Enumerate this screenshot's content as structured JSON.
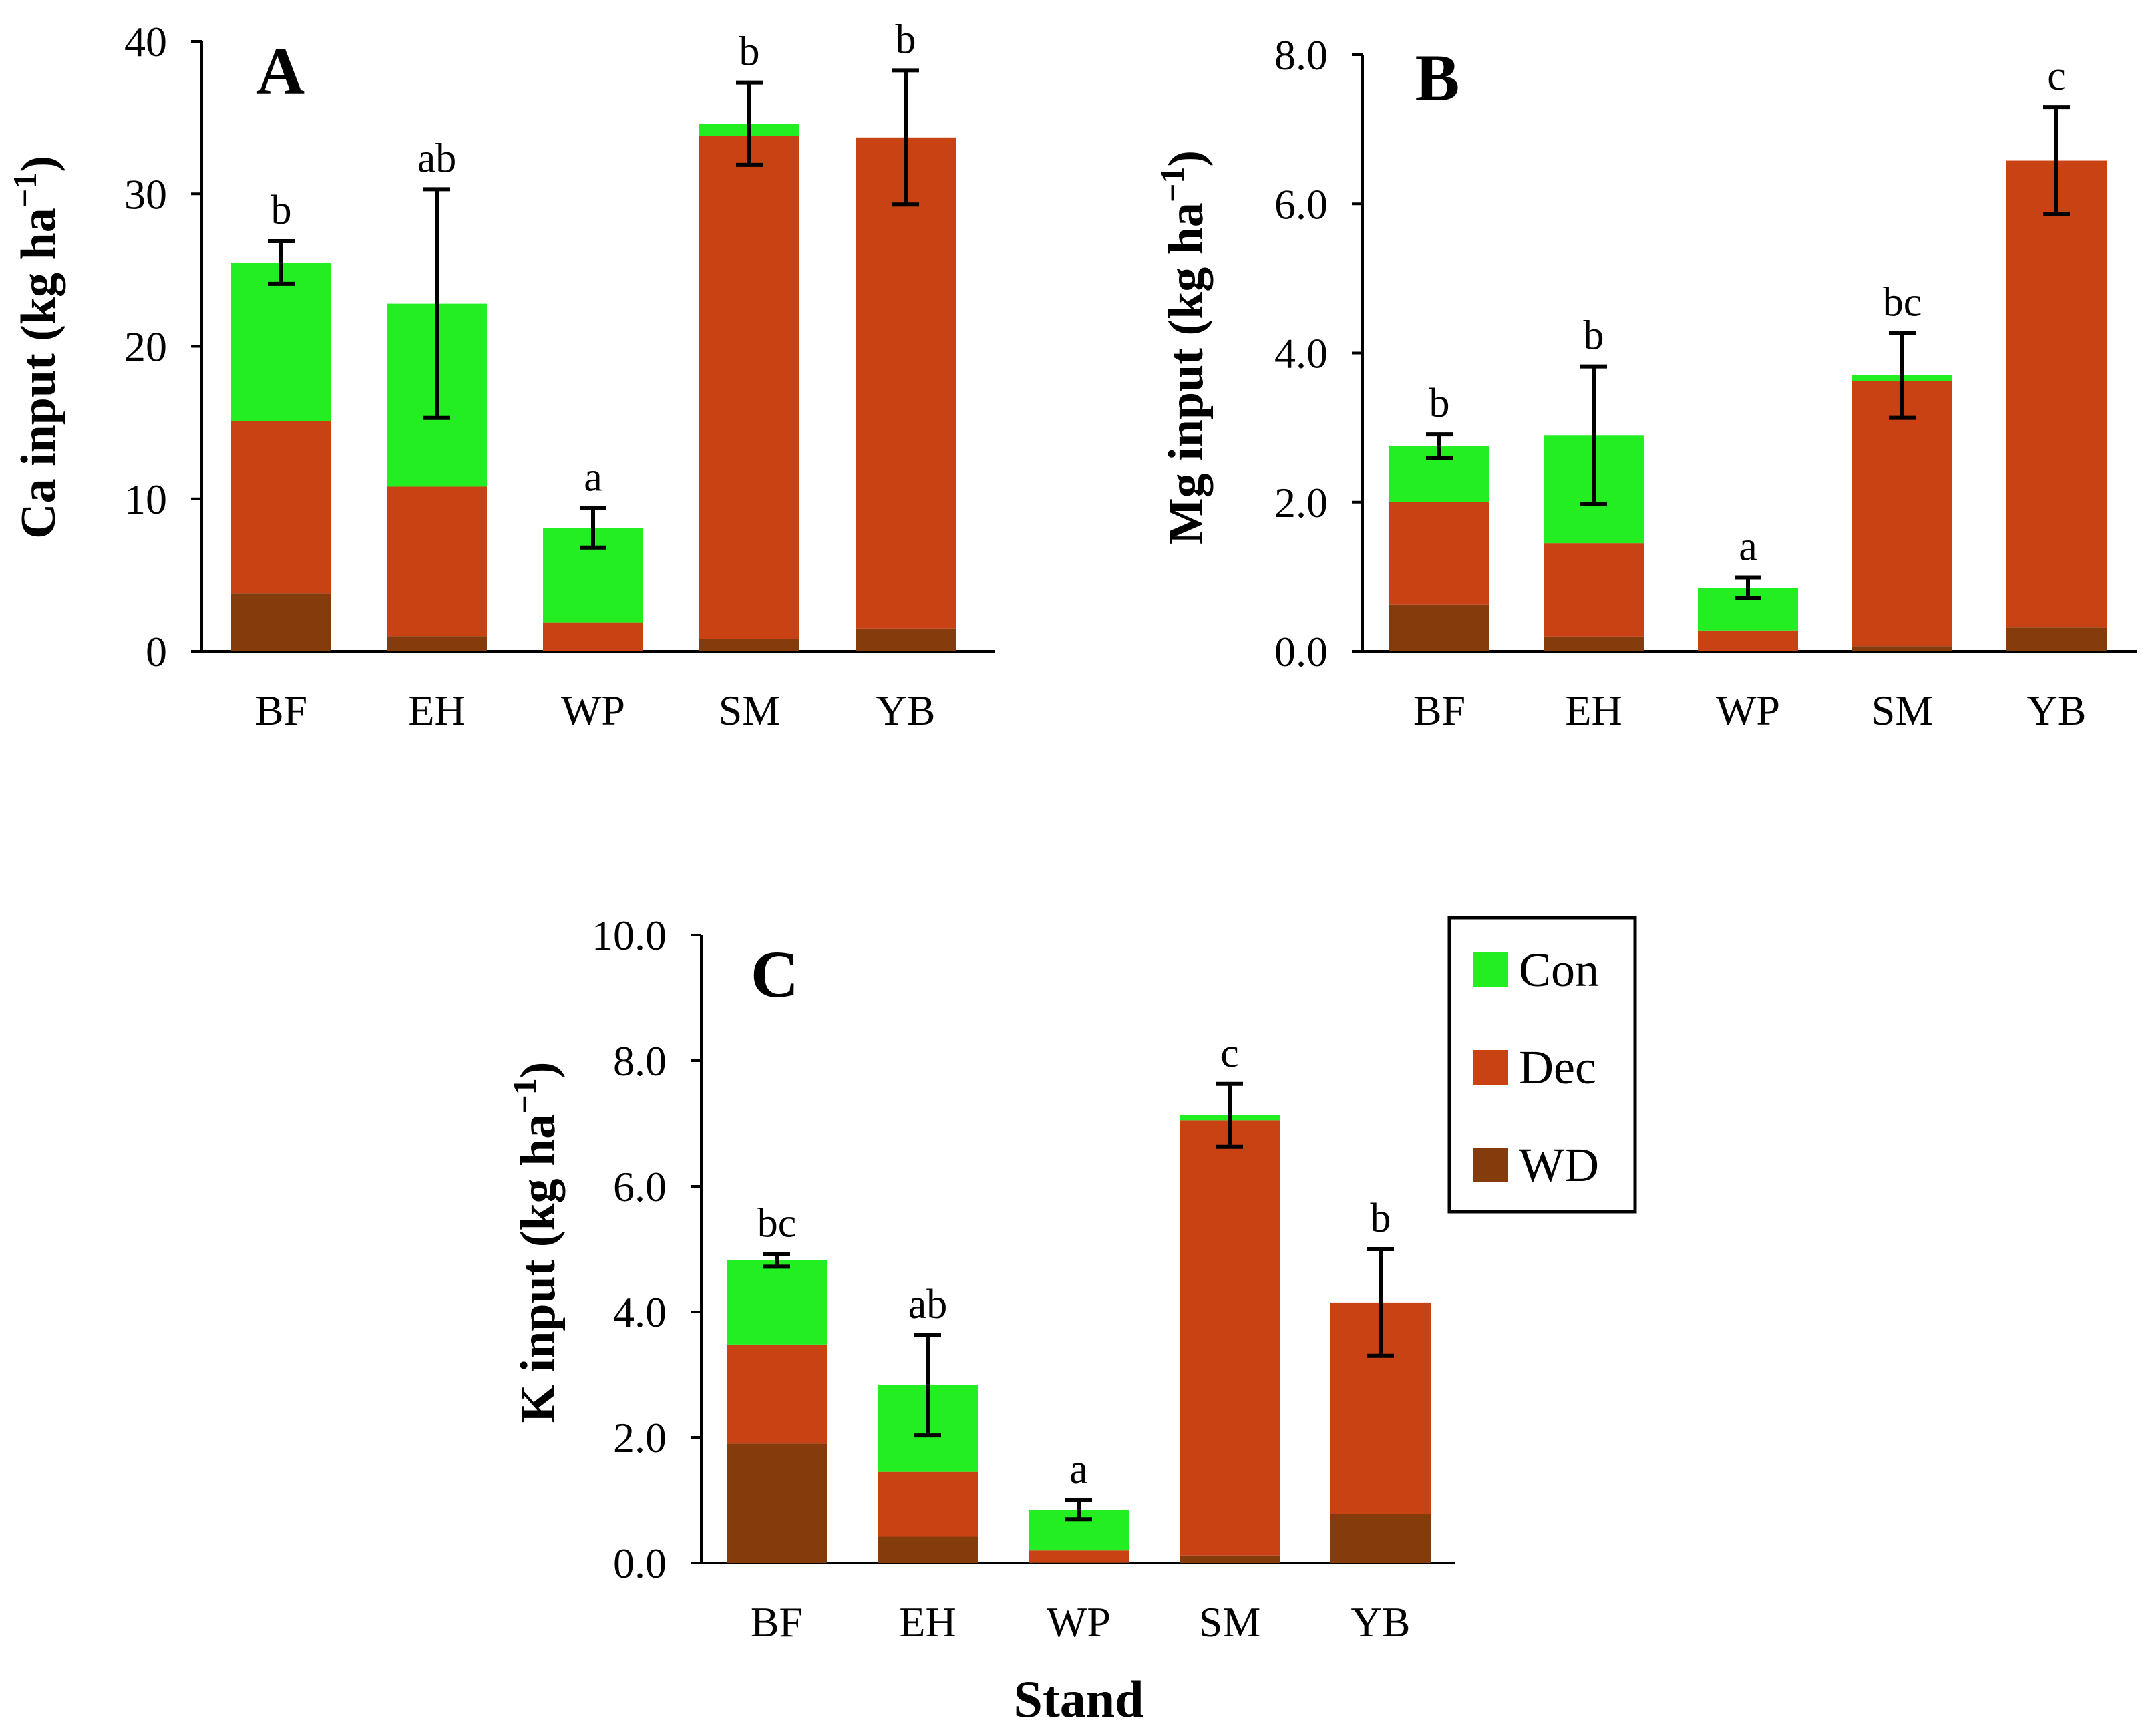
{
  "figure": {
    "x_title": "Stand",
    "legend": [
      "Con",
      "Dec",
      "WD"
    ]
  },
  "colors": {
    "Con": "#22ee22",
    "Dec": "#c84214",
    "WD": "#843c0c"
  },
  "chart_data": [
    {
      "panel": "A",
      "type": "bar",
      "stacked": true,
      "ylabel": "Ca input (kg ha",
      "ylabel_sup": "−1",
      "ylabel_close": ")",
      "ylim": [
        0,
        40
      ],
      "yticks": [
        "0",
        "10",
        "20",
        "30",
        "40"
      ],
      "categories": [
        "BF",
        "EH",
        "WP",
        "SM",
        "YB"
      ],
      "series": [
        {
          "name": "WD",
          "values": [
            3.8,
            1.0,
            0.0,
            0.8,
            1.5
          ]
        },
        {
          "name": "Dec",
          "values": [
            11.3,
            9.8,
            1.9,
            33.0,
            32.2
          ]
        },
        {
          "name": "Con",
          "values": [
            10.4,
            12.0,
            6.2,
            0.8,
            0.0
          ]
        }
      ],
      "error": [
        1.4,
        7.5,
        1.3,
        2.7,
        4.4
      ],
      "letters": [
        "b",
        "ab",
        "a",
        "b",
        "b"
      ]
    },
    {
      "panel": "B",
      "type": "bar",
      "stacked": true,
      "ylabel": "Mg input (kg ha",
      "ylabel_sup": "−1",
      "ylabel_close": ")",
      "ylim": [
        0,
        8
      ],
      "yticks": [
        "0.0",
        "2.0",
        "4.0",
        "6.0",
        "8.0"
      ],
      "categories": [
        "BF",
        "EH",
        "WP",
        "SM",
        "YB"
      ],
      "series": [
        {
          "name": "WD",
          "values": [
            0.62,
            0.2,
            0.0,
            0.07,
            0.32
          ]
        },
        {
          "name": "Dec",
          "values": [
            1.38,
            1.25,
            0.28,
            3.55,
            6.26
          ]
        },
        {
          "name": "Con",
          "values": [
            0.75,
            1.45,
            0.57,
            0.08,
            0.0
          ]
        }
      ],
      "error": [
        0.16,
        0.92,
        0.14,
        0.57,
        0.72
      ],
      "letters": [
        "b",
        "b",
        "a",
        "bc",
        "c"
      ]
    },
    {
      "panel": "C",
      "type": "bar",
      "stacked": true,
      "ylabel": "K input (kg ha",
      "ylabel_sup": "−1",
      "ylabel_close": ")",
      "ylim": [
        0,
        10
      ],
      "yticks": [
        "0.0",
        "2.0",
        "4.0",
        "6.0",
        "8.0",
        "10.0"
      ],
      "categories": [
        "BF",
        "EH",
        "WP",
        "SM",
        "YB"
      ],
      "series": [
        {
          "name": "WD",
          "values": [
            1.9,
            0.42,
            0.02,
            0.12,
            0.78
          ]
        },
        {
          "name": "Dec",
          "values": [
            1.58,
            1.03,
            0.18,
            6.93,
            3.37
          ]
        },
        {
          "name": "Con",
          "values": [
            1.34,
            1.38,
            0.65,
            0.08,
            0.0
          ]
        }
      ],
      "error": [
        0.1,
        0.8,
        0.15,
        0.5,
        0.85
      ],
      "letters": [
        "bc",
        "ab",
        "a",
        "c",
        "b"
      ]
    }
  ]
}
